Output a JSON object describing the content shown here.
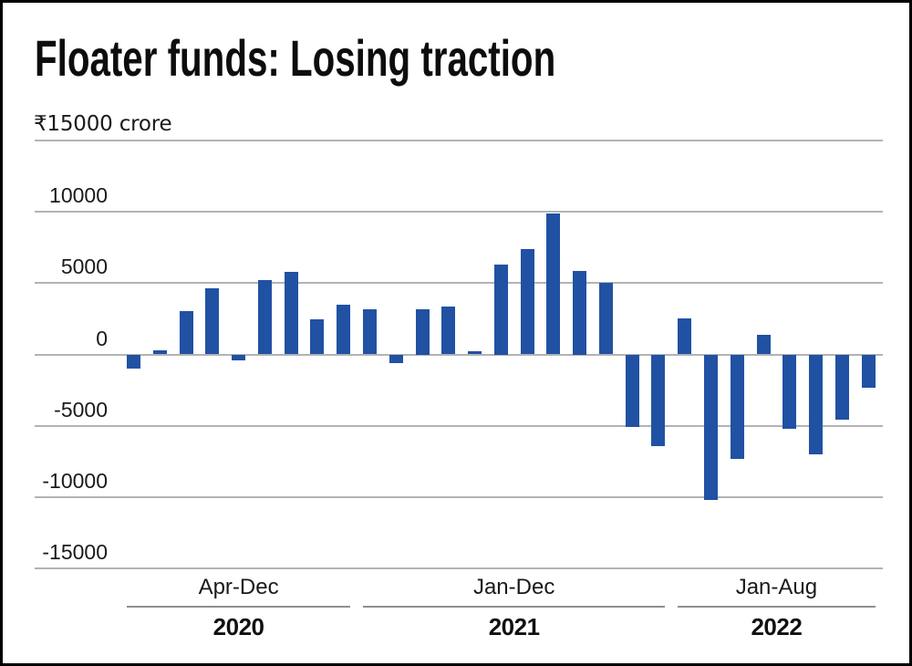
{
  "colors": {
    "bar": "#2151a3",
    "gridline": "#b3b3b6",
    "group_line": "#8f8f92",
    "text": "#1a1a1a",
    "border": "#000000",
    "background": "#ffffff"
  },
  "chart_data": {
    "type": "bar",
    "title": "Floater funds: Losing traction",
    "unit_top_label": "₹15000 crore",
    "ylabel": "",
    "xlabel": "",
    "ylim": [
      -15000,
      15000
    ],
    "y_ticks": [
      15000,
      10000,
      5000,
      0,
      -5000,
      -10000,
      -15000
    ],
    "grid": true,
    "legend": null,
    "groups": [
      {
        "period": "Apr-Dec",
        "year": "2020",
        "values": [
          -1000,
          300,
          3050,
          4650,
          -400,
          5200,
          5800,
          2450,
          3500
        ]
      },
      {
        "period": "Jan-Dec",
        "year": "2021",
        "values": [
          3150,
          -600,
          3200,
          3350,
          200,
          6300,
          7400,
          9900,
          5850,
          5000,
          -5100,
          -6400
        ]
      },
      {
        "period": "Jan-Aug",
        "year": "2022",
        "values": [
          2500,
          -10200,
          -7300,
          1350,
          -5200,
          -7000,
          -4600,
          -2350
        ]
      }
    ]
  }
}
